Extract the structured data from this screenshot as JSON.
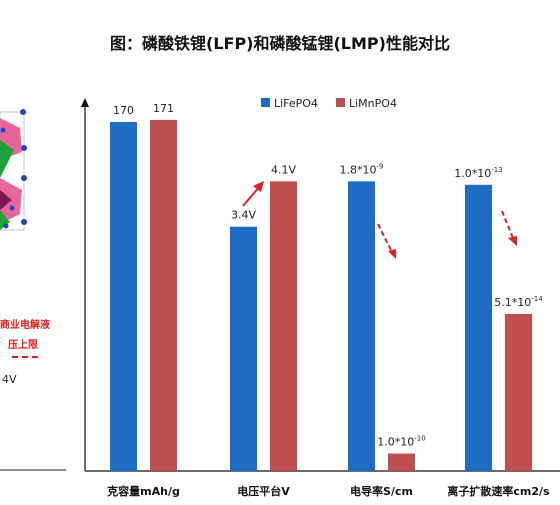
{
  "title": "图：磷酸铁锂(LFP)和磷酸锰锂(LMP)性能对比",
  "left_panel": {
    "red_note_line1": "商业电解液",
    "red_note_line2": "压上限",
    "voltage_label": "4V"
  },
  "chart_data": {
    "type": "bar",
    "title": "图：磷酸铁锂(LFP)和磷酸锰锂(LMP)性能对比",
    "categories": [
      "克容量mAh/g",
      "电压平台V",
      "电导率S/cm",
      "离子扩散速率cm2/s"
    ],
    "series": [
      {
        "name": "LiFePO4",
        "color": "#1f6cc4",
        "values": [
          170,
          3.4,
          1.8e-09,
          1e-13
        ],
        "labels": [
          {
            "base": "170",
            "exp": ""
          },
          {
            "base": "3.4V",
            "exp": ""
          },
          {
            "base": "1.8*10",
            "exp": "-9"
          },
          {
            "base": "1.0*10",
            "exp": "-13"
          }
        ]
      },
      {
        "name": "LiMnPO4",
        "color": "#c0504d",
        "values": [
          171,
          4.1,
          1e-10,
          5.1e-14
        ],
        "labels": [
          {
            "base": "171",
            "exp": ""
          },
          {
            "base": "4.1V",
            "exp": ""
          },
          {
            "base": "1.0*10",
            "exp": "-10"
          },
          {
            "base": "5.1*10",
            "exp": "-14"
          }
        ]
      }
    ],
    "relative_heights": [
      [
        1.0,
        1.006
      ],
      [
        0.7,
        0.83
      ],
      [
        0.83,
        0.05
      ],
      [
        0.82,
        0.45
      ]
    ],
    "legend_position": "top-center",
    "grid": false
  }
}
